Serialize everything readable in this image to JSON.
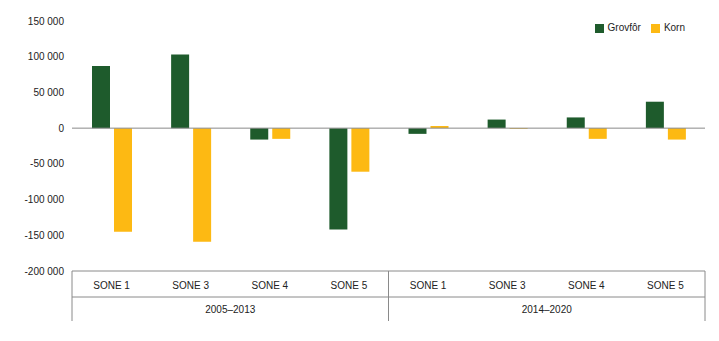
{
  "chart_data": {
    "type": "bar",
    "categories": [
      "SONE 1",
      "SONE 3",
      "SONE 4",
      "SONE 5",
      "SONE 1",
      "SONE 3",
      "SONE 4",
      "SONE 5"
    ],
    "category_groups": [
      {
        "label": "2005–2013",
        "count": 4
      },
      {
        "label": "2014–2020",
        "count": 4
      }
    ],
    "series": [
      {
        "name": "Grovfôr",
        "color": "#1e5b2c",
        "values": [
          87000,
          103000,
          -16000,
          -142000,
          -8000,
          12000,
          15000,
          37000
        ]
      },
      {
        "name": "Korn",
        "color": "#fdb913",
        "values": [
          -145000,
          -159000,
          -15000,
          -61000,
          3000,
          -1000,
          -15000,
          -16000
        ]
      }
    ],
    "ylim": [
      -200000,
      150000
    ],
    "yticks": [
      {
        "value": 150000,
        "label": "150 000"
      },
      {
        "value": 100000,
        "label": "100 000"
      },
      {
        "value": 50000,
        "label": "50 000"
      },
      0,
      {
        "value": -50000,
        "label": "-50 000"
      },
      {
        "value": -100000,
        "label": "-100 000"
      },
      {
        "value": -150000,
        "label": "-150 000"
      },
      {
        "value": -200000,
        "label": "-200 000"
      }
    ],
    "grid": false,
    "legend": "upper right"
  }
}
